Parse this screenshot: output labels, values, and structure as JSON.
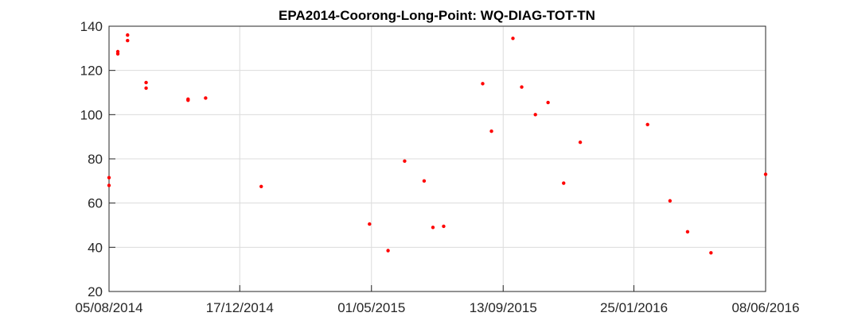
{
  "chart_data": {
    "type": "scatter",
    "title": "EPA2014-Coorong-Long-Point: WQ-DIAG-TOT-TN",
    "xlabel": "",
    "ylabel": "",
    "x_axis": {
      "type": "date",
      "range": [
        "2014-08-05",
        "2016-06-08"
      ],
      "ticks": [
        {
          "date": "2014-08-05",
          "label": "05/08/2014"
        },
        {
          "date": "2014-12-17",
          "label": "17/12/2014"
        },
        {
          "date": "2015-05-01",
          "label": "01/05/2015"
        },
        {
          "date": "2015-09-13",
          "label": "13/09/2015"
        },
        {
          "date": "2016-01-25",
          "label": "25/01/2016"
        },
        {
          "date": "2016-06-08",
          "label": "08/06/2016"
        }
      ]
    },
    "y_axis": {
      "range": [
        20,
        140
      ],
      "ticks": [
        20,
        40,
        60,
        80,
        100,
        120,
        140
      ]
    },
    "grid": true,
    "marker_color": "#ff0000",
    "series": [
      {
        "points": [
          {
            "x": "2014-08-05",
            "y": 71.5
          },
          {
            "x": "2014-08-05",
            "y": 68
          },
          {
            "x": "2014-08-14",
            "y": 128.5
          },
          {
            "x": "2014-08-14",
            "y": 127.5
          },
          {
            "x": "2014-08-24",
            "y": 136
          },
          {
            "x": "2014-08-24",
            "y": 133.5
          },
          {
            "x": "2014-09-12",
            "y": 114.5
          },
          {
            "x": "2014-09-12",
            "y": 112
          },
          {
            "x": "2014-10-25",
            "y": 107
          },
          {
            "x": "2014-10-25",
            "y": 106.5
          },
          {
            "x": "2014-11-12",
            "y": 107.5
          },
          {
            "x": "2015-01-08",
            "y": 67.5
          },
          {
            "x": "2015-04-29",
            "y": 50.5
          },
          {
            "x": "2015-05-18",
            "y": 38.5
          },
          {
            "x": "2015-06-04",
            "y": 79
          },
          {
            "x": "2015-06-24",
            "y": 70
          },
          {
            "x": "2015-07-03",
            "y": 49
          },
          {
            "x": "2015-07-14",
            "y": 49.5
          },
          {
            "x": "2015-08-23",
            "y": 114
          },
          {
            "x": "2015-09-01",
            "y": 92.5
          },
          {
            "x": "2015-09-23",
            "y": 134.5
          },
          {
            "x": "2015-10-02",
            "y": 112.5
          },
          {
            "x": "2015-10-16",
            "y": 100
          },
          {
            "x": "2015-10-29",
            "y": 105.5
          },
          {
            "x": "2015-11-14",
            "y": 69
          },
          {
            "x": "2015-12-01",
            "y": 87.5
          },
          {
            "x": "2016-02-08",
            "y": 95.5
          },
          {
            "x": "2016-03-02",
            "y": 61
          },
          {
            "x": "2016-03-20",
            "y": 47
          },
          {
            "x": "2016-04-13",
            "y": 37.5
          },
          {
            "x": "2016-06-08",
            "y": 73
          }
        ]
      }
    ]
  }
}
